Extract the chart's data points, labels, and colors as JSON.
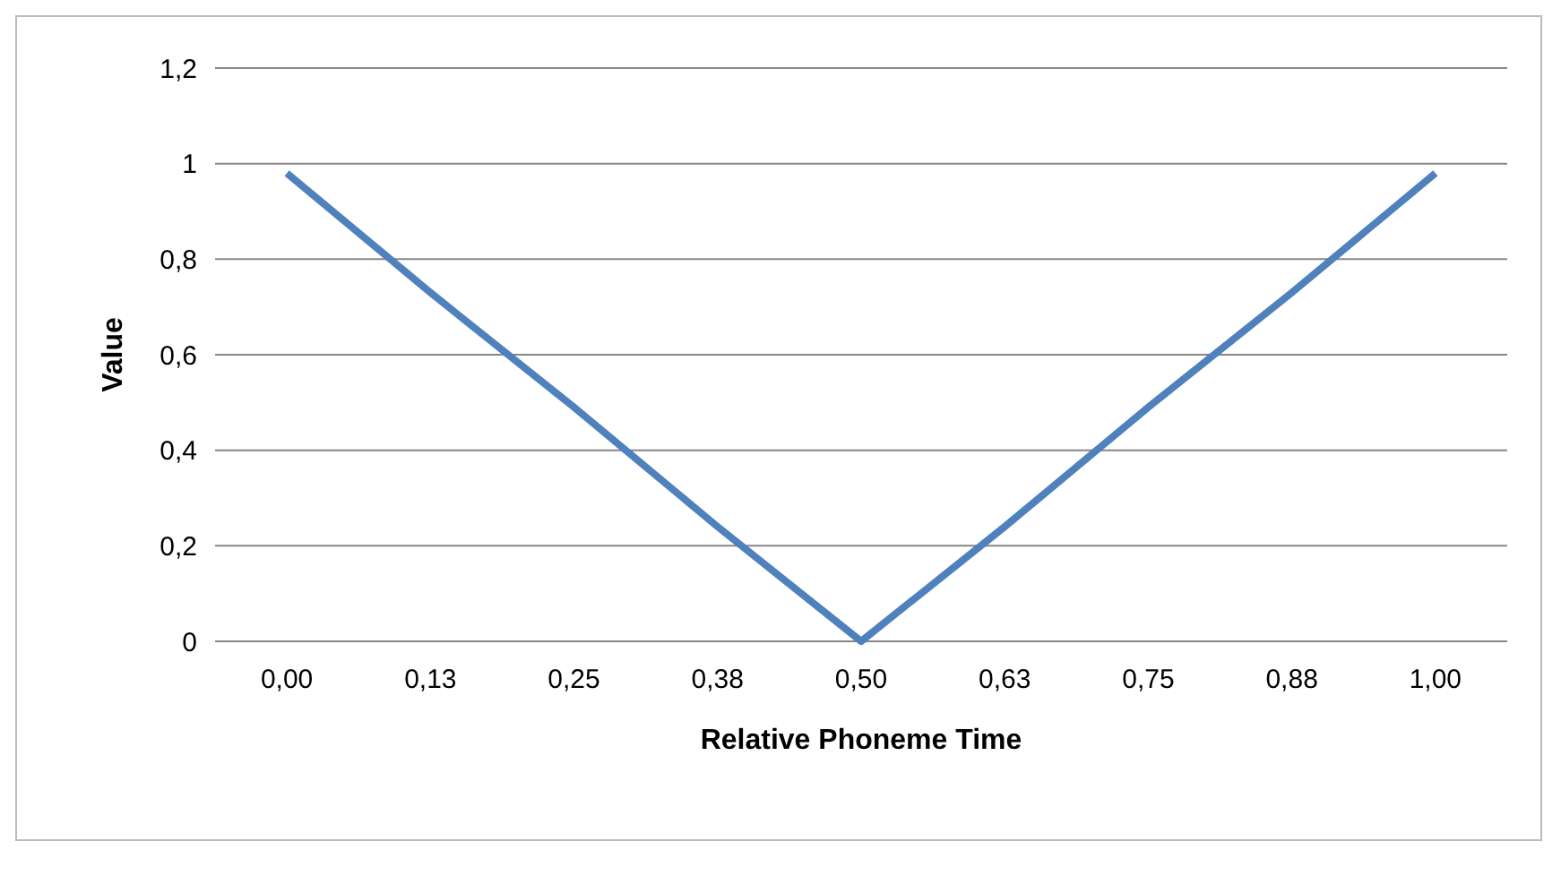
{
  "chart_data": {
    "type": "line",
    "xlabel": "Relative Phoneme Time",
    "ylabel": "Value",
    "categories": [
      "0,00",
      "0,13",
      "0,25",
      "0,38",
      "0,50",
      "0,63",
      "0,75",
      "0,88",
      "1,00"
    ],
    "series": [
      {
        "color": "#4f81bd",
        "values": [
          0.98,
          0.73,
          0.49,
          0.24,
          0,
          0.24,
          0.49,
          0.73,
          0.98
        ]
      }
    ],
    "ylim": [
      0,
      1.2
    ],
    "yticks": [
      0,
      {
        "value": 0.2,
        "label": "0,2"
      },
      {
        "value": 0.4,
        "label": "0,4"
      },
      {
        "value": 0.6,
        "label": "0,6"
      },
      {
        "value": 0.8,
        "label": "0,8"
      },
      1,
      {
        "value": 1.2,
        "label": "1,2"
      }
    ],
    "grid": "y",
    "marker": "none",
    "line_style": "solid"
  }
}
